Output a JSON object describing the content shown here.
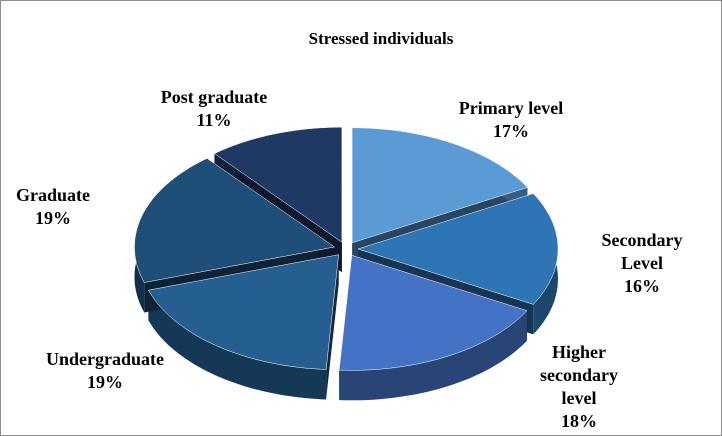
{
  "chart_data": {
    "type": "pie3d",
    "title": "Stressed individuals",
    "categories": [
      "Primary level",
      "Secondary Level",
      "Higher secondary level",
      "Undergraduate",
      "Graduate",
      "Post graduate"
    ],
    "values": [
      17,
      16,
      18,
      19,
      19,
      11
    ],
    "value_labels": [
      "17%",
      "16%",
      "18%",
      "19%",
      "19%",
      "11%"
    ],
    "colors": [
      "#5b9bd5",
      "#2e75b6",
      "#4472c4",
      "#255e91",
      "#1f4e79",
      "#203864"
    ]
  }
}
